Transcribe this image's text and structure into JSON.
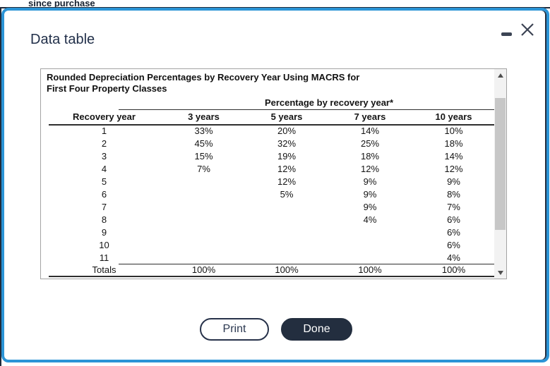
{
  "background": {
    "header_text": "since purchase"
  },
  "modal": {
    "title": "Data table",
    "window_controls": {
      "minimize_icon": "minus-icon",
      "close_icon": "x-icon"
    }
  },
  "table": {
    "title_line1": "Rounded Depreciation Percentages by Recovery Year Using MACRS for",
    "title_line2": "First Four Property Classes",
    "group_header": "Percentage by recovery year*",
    "columns": [
      "Recovery year",
      "3 years",
      "5 years",
      "7 years",
      "10 years"
    ],
    "rows": [
      [
        "1",
        "33%",
        "20%",
        "14%",
        "10%"
      ],
      [
        "2",
        "45%",
        "32%",
        "25%",
        "18%"
      ],
      [
        "3",
        "15%",
        "19%",
        "18%",
        "14%"
      ],
      [
        "4",
        "7%",
        "12%",
        "12%",
        "12%"
      ],
      [
        "5",
        "",
        "12%",
        "9%",
        "9%"
      ],
      [
        "6",
        "",
        "5%",
        "9%",
        "8%"
      ],
      [
        "7",
        "",
        "",
        "9%",
        "7%"
      ],
      [
        "8",
        "",
        "",
        "4%",
        "6%"
      ],
      [
        "9",
        "",
        "",
        "",
        "6%"
      ],
      [
        "10",
        "",
        "",
        "",
        "6%"
      ],
      [
        "11",
        "",
        "",
        "",
        "4%"
      ]
    ],
    "totals_row": [
      "Totals",
      "100%",
      "100%",
      "100%",
      "100%"
    ]
  },
  "scrollbar": {
    "up_icon": "up-arrow-icon",
    "down_icon": "down-arrow-icon"
  },
  "buttons": {
    "print_label": "Print",
    "done_label": "Done"
  },
  "colors": {
    "accent_blue": "#2b94d6",
    "dark_navy": "#232e3f"
  }
}
